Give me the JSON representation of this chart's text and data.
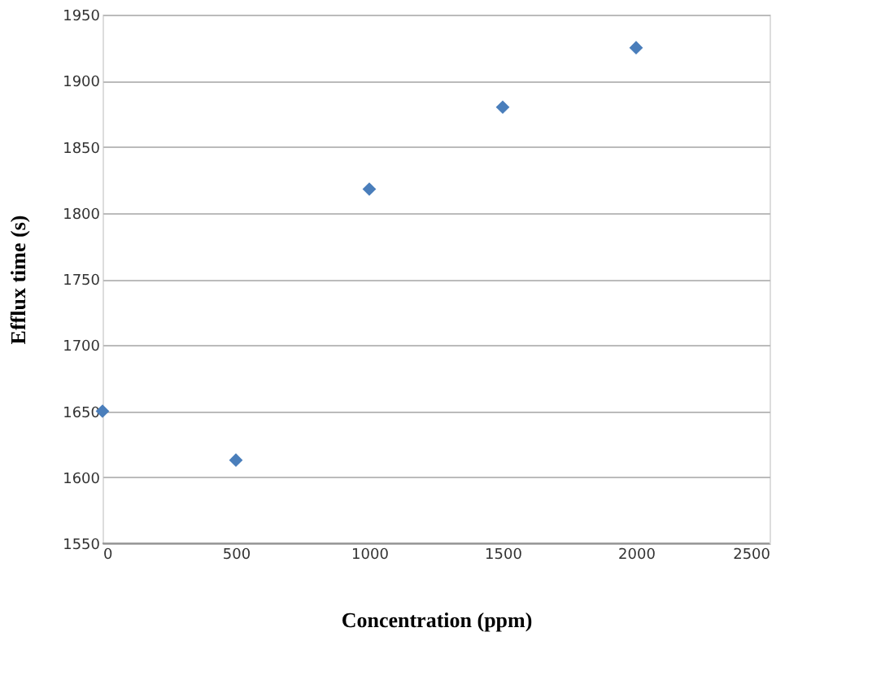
{
  "chart_data": {
    "type": "scatter",
    "xlabel": "Concentration (ppm)",
    "ylabel": "Efflux time (s)",
    "x": [
      0,
      500,
      1000,
      1500,
      2000
    ],
    "series": [
      {
        "color": "#4a7ebb",
        "values": [
          1650,
          1613,
          1818,
          1880,
          1925
        ]
      }
    ],
    "xlim": [
      0,
      2500
    ],
    "xticks": [
      0,
      500,
      1000,
      1500,
      2000,
      2500
    ],
    "ylim": [
      1550,
      1950
    ],
    "yticks": [
      1550,
      1600,
      1650,
      1700,
      1750,
      1800,
      1850,
      1900,
      1950
    ],
    "grid": "y",
    "marker": "diamond",
    "legend": false
  }
}
